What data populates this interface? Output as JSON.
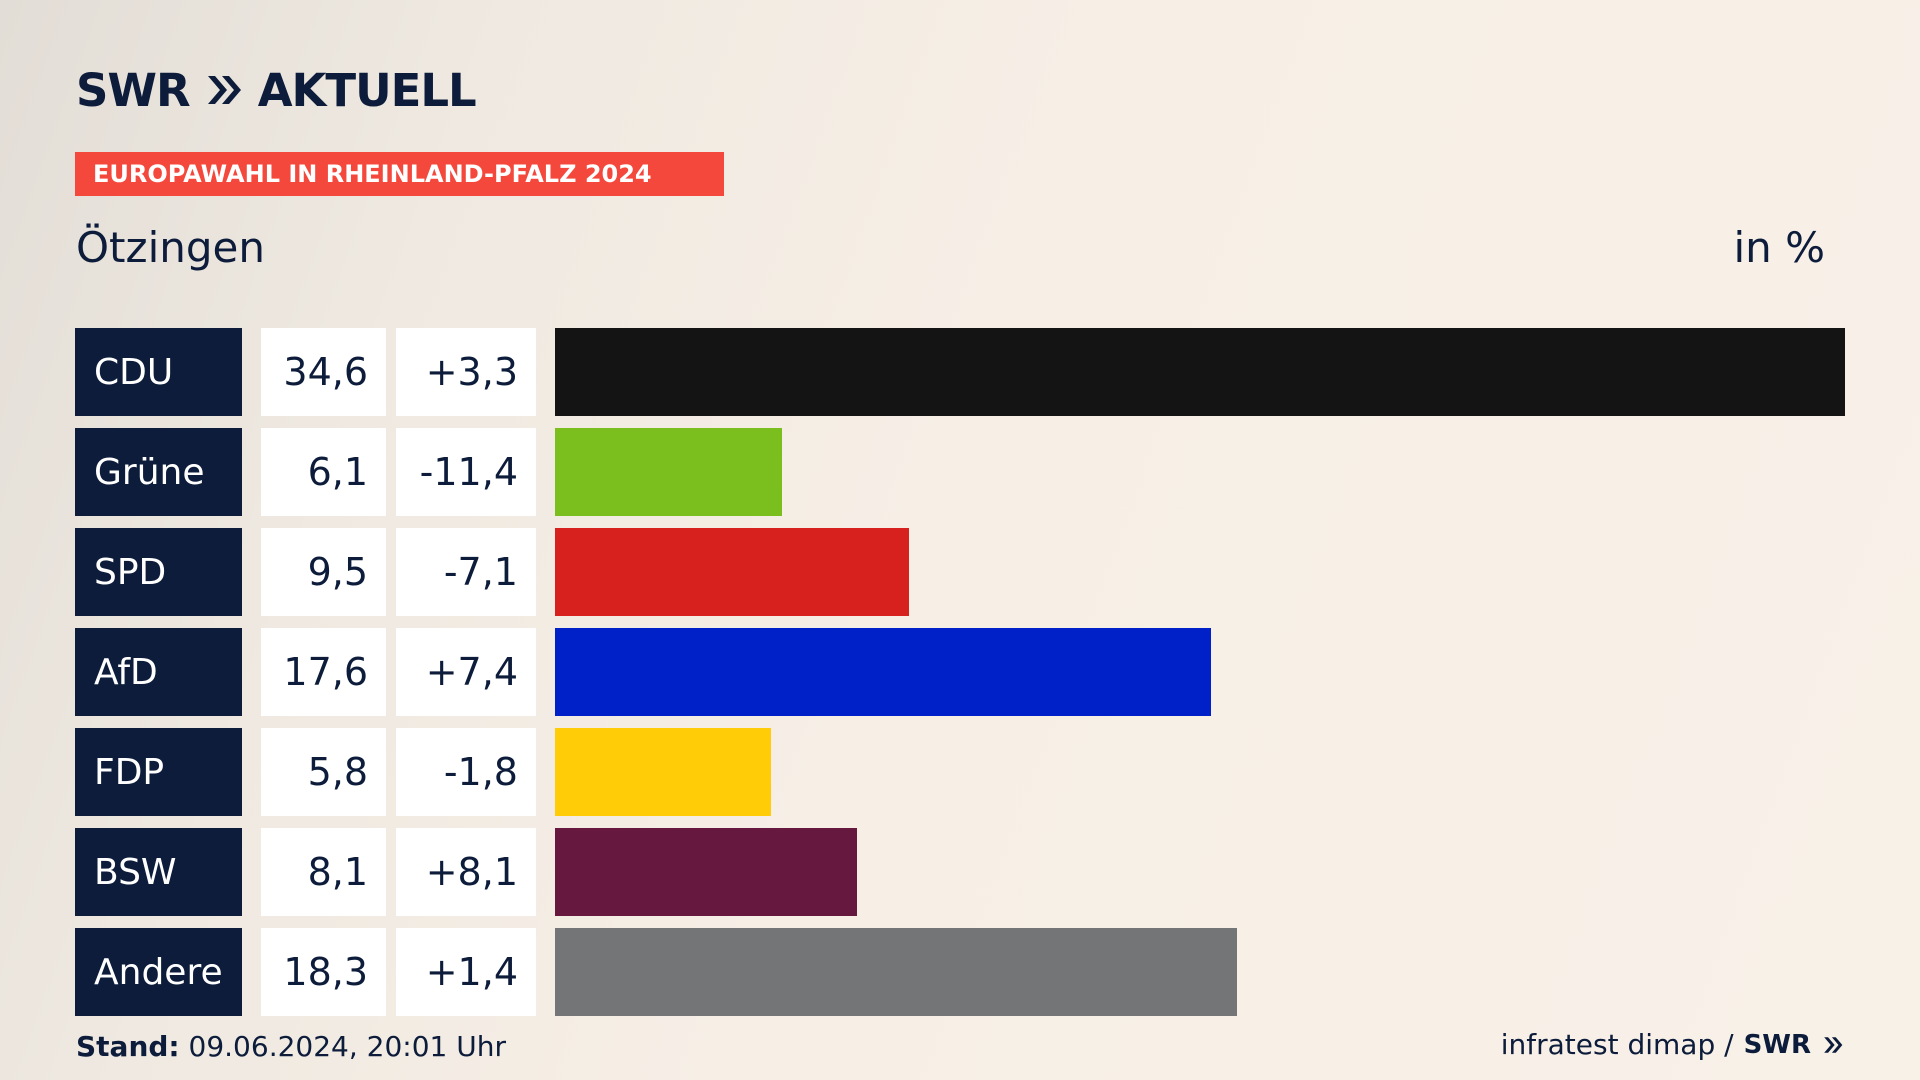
{
  "header": {
    "logo_swr": "SWR",
    "logo_text": "AKTUELL",
    "badge": "EUROPAWAHL IN RHEINLAND-PFALZ 2024"
  },
  "chart_data": {
    "type": "bar",
    "title": "Ötzingen",
    "unit_label": "in %",
    "categories": [
      "CDU",
      "Grüne",
      "SPD",
      "AfD",
      "FDP",
      "BSW",
      "Andere"
    ],
    "values": [
      34.6,
      6.1,
      9.5,
      17.6,
      5.8,
      8.1,
      18.3
    ],
    "values_display": [
      "34,6",
      "6,1",
      "9,5",
      "17,6",
      "5,8",
      "8,1",
      "18,3"
    ],
    "diffs_display": [
      "+3,3",
      "-11,4",
      "-7,1",
      "+7,4",
      "-1,8",
      "+8,1",
      "+1,4"
    ],
    "colors": [
      "#141414",
      "#7abf1e",
      "#d7211f",
      "#0021c8",
      "#ffcc07",
      "#66183f",
      "#747577"
    ],
    "xlim": [
      0,
      34.6
    ]
  },
  "footer": {
    "stand_label": "Stand:",
    "stand_value": "09.06.2024, 20:01 Uhr",
    "source": "infratest dimap /",
    "source_logo": "SWR"
  }
}
